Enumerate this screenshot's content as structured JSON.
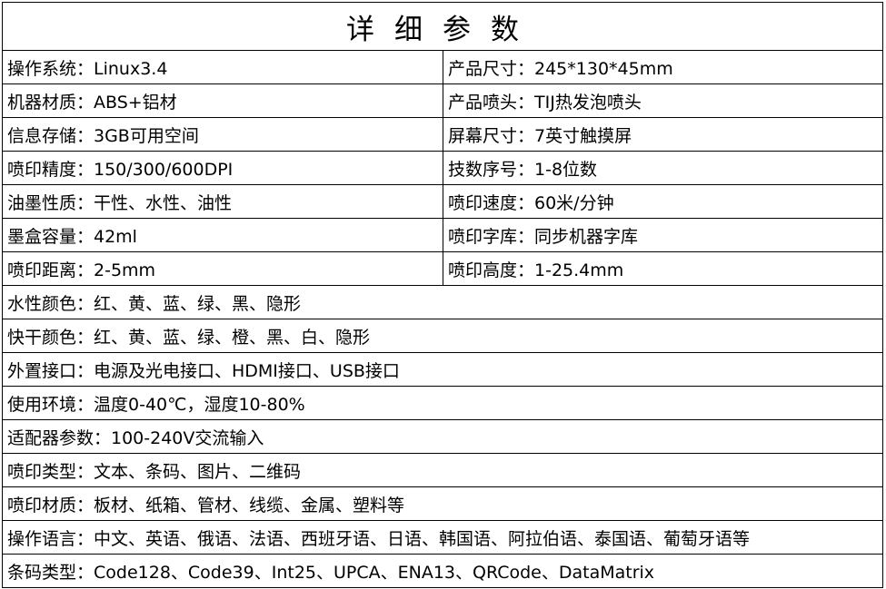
{
  "title": "详细参数",
  "paired_rows": [
    [
      "操作系统：Linux3.4",
      "产品尺寸：245*130*45mm"
    ],
    [
      "机器材质：ABS+铝材",
      "产品喷头：TIJ热发泡喷头"
    ],
    [
      "信息存储：3GB可用空间",
      "屏幕尺寸：7英寸触摸屏"
    ],
    [
      "喷印精度：150/300/600DPI",
      "技数序号：1-8位数"
    ],
    [
      "油墨性质：干性、水性、油性",
      "喷印速度：60米/分钟"
    ],
    [
      "墨盒容量：42ml",
      "喷印字库：同步机器字库"
    ],
    [
      "喷印距离：2-5mm",
      "喷印高度：1-25.4mm"
    ]
  ],
  "full_rows": [
    "水性颜色：红、黄、蓝、绿、黑、隐形",
    "快干颜色：红、黄、蓝、绿、橙、黑、白、隐形",
    "外置接口：电源及光电接口、HDMI接口、USB接口",
    "使用环境：温度0-40℃，湿度10-80%",
    "适配器参数：100-240V交流输入",
    "喷印类型：文本、条码、图片、二维码",
    "喷印材质：板材、纸箱、管材、线缆、金属、塑料等",
    "操作语言：中文、英语、俄语、法语、西班牙语、日语、韩国语、阿拉伯语、泰国语、葡萄牙语等",
    "条码类型：Code128、Code39、Int25、UPCA、ENA13、QRCode、DataMatrix"
  ]
}
